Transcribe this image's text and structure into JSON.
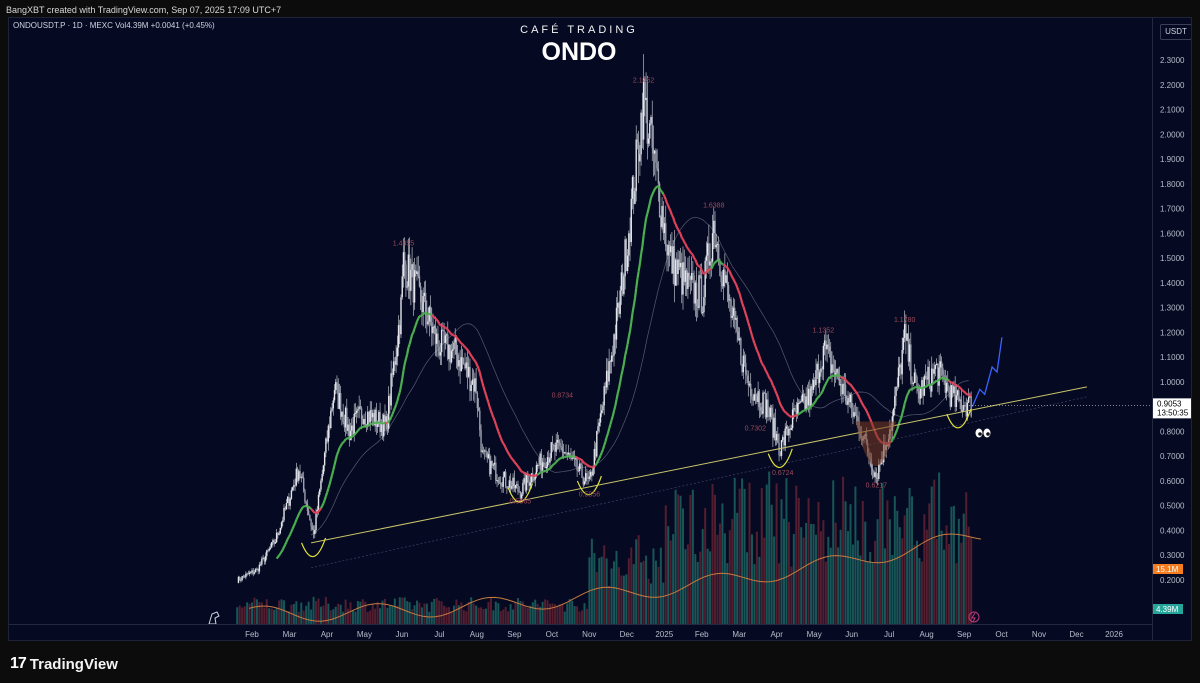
{
  "header": {
    "attribution": "BangXBT created with TradingView.com, Sep 07, 2025 17:09 UTC+7",
    "symbol_line": "ONDOUSDT.P · 1D · MEXC  Vol4.39M  +0.0041 (+0.45%)",
    "brand": "CAFÉ TRADING",
    "ticker": "ONDO",
    "currency": "USDT"
  },
  "footer": {
    "logo": "17",
    "text": "TradingView"
  },
  "colors": {
    "background": "#050a22",
    "candles": "#d7d9df",
    "ema_up": "#4caf50",
    "ema_down": "#e0435a",
    "trendline": "#c9c46a",
    "volume_ma": "#c77a3e",
    "price_badge": "#ffffff",
    "volume_badge": "#f57c1f",
    "volume_badge2": "#26a69a",
    "projection": "#3b63ff"
  },
  "chart_data": {
    "type": "candlestick",
    "ylim": [
      0.1,
      2.4
    ],
    "y_ticks": [
      "2.3000",
      "2.2000",
      "2.1000",
      "2.0000",
      "1.9000",
      "1.8000",
      "1.7000",
      "1.6000",
      "1.5000",
      "1.4000",
      "1.3000",
      "1.2000",
      "1.1000",
      "1.0000",
      "0.9000",
      "0.8000",
      "0.7000",
      "0.6000",
      "0.5000",
      "0.4000",
      "0.3000",
      "0.2000"
    ],
    "x_ticks": [
      "Feb",
      "Mar",
      "Apr",
      "May",
      "Jun",
      "Jul",
      "Aug",
      "Sep",
      "Oct",
      "Nov",
      "Dec",
      "2025",
      "Feb",
      "Mar",
      "Apr",
      "May",
      "Jun",
      "Jul",
      "Aug",
      "Sep",
      "Oct",
      "Nov",
      "Dec",
      "2026"
    ],
    "price_path": [
      [
        "2024-01-20",
        0.2
      ],
      [
        "2024-02-05",
        0.24
      ],
      [
        "2024-02-20",
        0.36
      ],
      [
        "2024-03-10",
        0.65
      ],
      [
        "2024-03-22",
        0.38
      ],
      [
        "2024-04-08",
        0.98
      ],
      [
        "2024-04-20",
        0.8
      ],
      [
        "2024-05-01",
        0.88
      ],
      [
        "2024-05-20",
        0.82
      ],
      [
        "2024-06-01",
        1.3
      ],
      [
        "2024-06-03",
        1.4855
      ],
      [
        "2024-06-20",
        1.3
      ],
      [
        "2024-07-01",
        1.15
      ],
      [
        "2024-07-15",
        1.12
      ],
      [
        "2024-08-01",
        0.98
      ],
      [
        "2024-08-06",
        0.7
      ],
      [
        "2024-08-20",
        0.62
      ],
      [
        "2024-09-06",
        0.5565
      ],
      [
        "2024-09-20",
        0.66
      ],
      [
        "2024-10-01",
        0.72
      ],
      [
        "2024-10-10",
        0.73
      ],
      [
        "2024-10-20",
        0.66
      ],
      [
        "2024-11-01",
        0.5856
      ],
      [
        "2024-11-15",
        1.0
      ],
      [
        "2024-11-25",
        1.3
      ],
      [
        "2024-12-05",
        1.7
      ],
      [
        "2024-12-15",
        2.1452
      ],
      [
        "2024-12-28",
        1.75
      ],
      [
        "2025-01-05",
        1.5
      ],
      [
        "2025-01-20",
        1.38
      ],
      [
        "2025-02-01",
        1.35
      ],
      [
        "2025-02-10",
        1.6388
      ],
      [
        "2025-02-25",
        1.25
      ],
      [
        "2025-03-10",
        1.0
      ],
      [
        "2025-03-25",
        0.9
      ],
      [
        "2025-04-05",
        0.7302
      ],
      [
        "2025-04-15",
        0.85
      ],
      [
        "2025-05-01",
        0.95
      ],
      [
        "2025-05-10",
        1.1352
      ],
      [
        "2025-05-25",
        0.98
      ],
      [
        "2025-06-10",
        0.8
      ],
      [
        "2025-06-22",
        0.6217
      ],
      [
        "2025-07-05",
        0.85
      ],
      [
        "2025-07-15",
        1.178
      ],
      [
        "2025-07-25",
        0.95
      ],
      [
        "2025-08-10",
        1.05
      ],
      [
        "2025-08-25",
        0.92
      ],
      [
        "2025-09-07",
        0.9053
      ]
    ],
    "annotations": {
      "highs": [
        "1.4855",
        "0.8734",
        "2.1452",
        "1.6388",
        "1.1352",
        "1.1780"
      ],
      "lows": [
        "0.5565",
        "0.5856",
        "0.7302",
        "0.6724",
        "0.6217"
      ]
    },
    "current_price": "0.9053",
    "countdown": "13:50:35",
    "volume_ma_label": "15.1M",
    "volume_label": "4.39M",
    "trendline": [
      [
        "2024-03-20",
        0.35
      ],
      [
        "2025-12-10",
        0.98
      ]
    ]
  }
}
